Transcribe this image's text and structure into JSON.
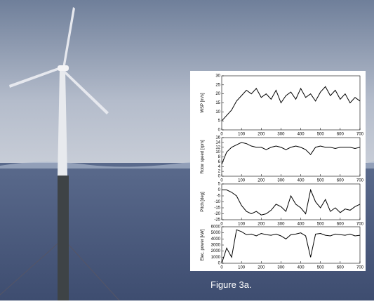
{
  "caption": "Figure 3a.",
  "chart_data": [
    {
      "type": "line",
      "ylabel": "WSP [m/s]",
      "x": [
        0,
        25,
        50,
        75,
        100,
        125,
        150,
        175,
        200,
        225,
        250,
        275,
        300,
        325,
        350,
        375,
        400,
        425,
        450,
        475,
        500,
        525,
        550,
        575,
        600,
        625,
        650,
        675,
        700
      ],
      "series": [
        {
          "color": "#000000",
          "values": [
            5,
            8,
            11,
            16,
            19,
            22,
            20,
            23,
            18,
            20,
            17,
            22,
            15,
            19,
            21,
            17,
            23,
            18,
            20,
            16,
            21,
            24,
            19,
            22,
            17,
            20,
            15,
            18,
            16
          ]
        }
      ],
      "xlim": [
        0,
        700
      ],
      "xticks": [
        0,
        100,
        200,
        300,
        400,
        500,
        600,
        700
      ],
      "ylim": [
        0,
        30
      ],
      "yticks": [
        0,
        5,
        10,
        15,
        20,
        25,
        30
      ]
    },
    {
      "type": "line",
      "ylabel": "Rotor speed [rpm]",
      "x": [
        0,
        25,
        50,
        75,
        100,
        125,
        150,
        175,
        200,
        225,
        250,
        275,
        300,
        325,
        350,
        375,
        400,
        425,
        450,
        475,
        500,
        525,
        550,
        575,
        600,
        625,
        650,
        675,
        700
      ],
      "series": [
        {
          "color": "#000000",
          "values": [
            5,
            10,
            12,
            13,
            14,
            13.5,
            12.5,
            12,
            12,
            11,
            12,
            12.5,
            12,
            11,
            12,
            12.5,
            12,
            11,
            9,
            12,
            12.5,
            12,
            12,
            11.5,
            12,
            12,
            12,
            11.5,
            12
          ]
        }
      ],
      "xlim": [
        0,
        700
      ],
      "xticks": [
        0,
        100,
        200,
        300,
        400,
        500,
        600,
        700
      ],
      "ylim": [
        0,
        16
      ],
      "yticks": [
        0,
        2,
        4,
        6,
        8,
        10,
        12,
        14,
        16
      ]
    },
    {
      "type": "line",
      "ylabel": "Pitch [deg]",
      "x": [
        0,
        25,
        50,
        75,
        100,
        125,
        150,
        175,
        200,
        225,
        250,
        275,
        300,
        325,
        350,
        375,
        400,
        425,
        450,
        475,
        500,
        525,
        550,
        575,
        600,
        625,
        650,
        675,
        700
      ],
      "series": [
        {
          "color": "#000000",
          "values": [
            0,
            0,
            -2,
            -5,
            -13,
            -18,
            -20,
            -18,
            -21,
            -20,
            -17,
            -12,
            -14,
            -18,
            -5,
            -12,
            -15,
            -20,
            0,
            -10,
            -15,
            -8,
            -18,
            -15,
            -19,
            -16,
            -17,
            -14,
            -12
          ]
        }
      ],
      "xlim": [
        0,
        700
      ],
      "xticks": [
        0,
        100,
        200,
        300,
        400,
        500,
        600,
        700
      ],
      "ylim": [
        -25,
        5
      ],
      "yticks": [
        -25,
        -20,
        -15,
        -10,
        -5,
        0,
        5
      ]
    },
    {
      "type": "line",
      "ylabel": "Elec. power [kW]",
      "x": [
        0,
        25,
        50,
        75,
        100,
        125,
        150,
        175,
        200,
        225,
        250,
        275,
        300,
        325,
        350,
        375,
        400,
        425,
        450,
        475,
        500,
        525,
        550,
        575,
        600,
        625,
        650,
        675,
        700
      ],
      "series": [
        {
          "color": "#000000",
          "values": [
            0,
            2500,
            1000,
            5500,
            5200,
            4700,
            4800,
            4500,
            4900,
            4700,
            4600,
            4800,
            4500,
            4000,
            4700,
            4800,
            5000,
            4500,
            1000,
            4800,
            4900,
            4600,
            4500,
            4800,
            4700,
            4600,
            4800,
            4500,
            4600
          ]
        }
      ],
      "xlim": [
        0,
        700
      ],
      "xticks": [
        0,
        100,
        200,
        300,
        400,
        500,
        600,
        700
      ],
      "ylim": [
        0,
        6000
      ],
      "yticks": [
        0,
        1000,
        2000,
        3000,
        4000,
        5000,
        6000
      ]
    }
  ]
}
